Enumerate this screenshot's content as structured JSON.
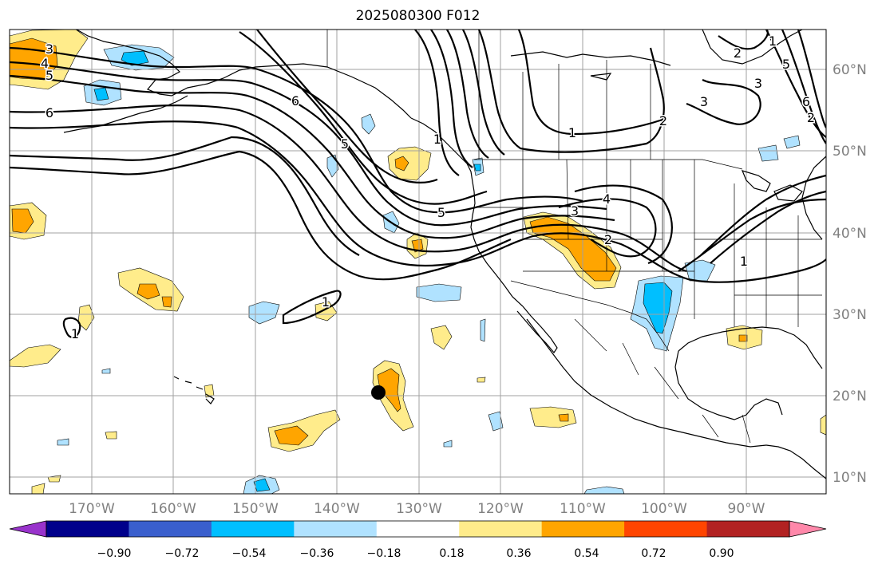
{
  "title": "2025080300 F012",
  "lon_labels": [
    "170°W",
    "160°W",
    "150°W",
    "140°W",
    "130°W",
    "120°W",
    "110°W",
    "100°W",
    "90°W"
  ],
  "lat_labels": [
    "60°N",
    "50°N",
    "40°N",
    "30°N",
    "20°N",
    "10°N"
  ],
  "colorbar": {
    "ticks": [
      "−0.90",
      "−0.72",
      "−0.54",
      "−0.36",
      "−0.18",
      "0.18",
      "0.36",
      "0.54",
      "0.72",
      "0.90"
    ],
    "colors": [
      "#9933cc",
      "#00008b",
      "#3a5fcd",
      "#00bfff",
      "#b0e2ff",
      "#ffffff",
      "#ffec8b",
      "#ffa500",
      "#ff4500",
      "#b22222",
      "#ff88aa"
    ],
    "extend": "both"
  },
  "contour_labels": [
    "3",
    "4",
    "5",
    "6",
    "6",
    "5",
    "5",
    "1",
    "1",
    "4",
    "3",
    "2",
    "2",
    "3",
    "6",
    "1",
    "2",
    "3",
    "5",
    "1",
    "1",
    "2",
    "1"
  ],
  "marker": {
    "type": "filled-circle",
    "color": "#000000"
  },
  "colors": {
    "grid": "#a0a0a0",
    "axis_text": "#808080",
    "contour": "#000000",
    "coast": "#000000"
  }
}
